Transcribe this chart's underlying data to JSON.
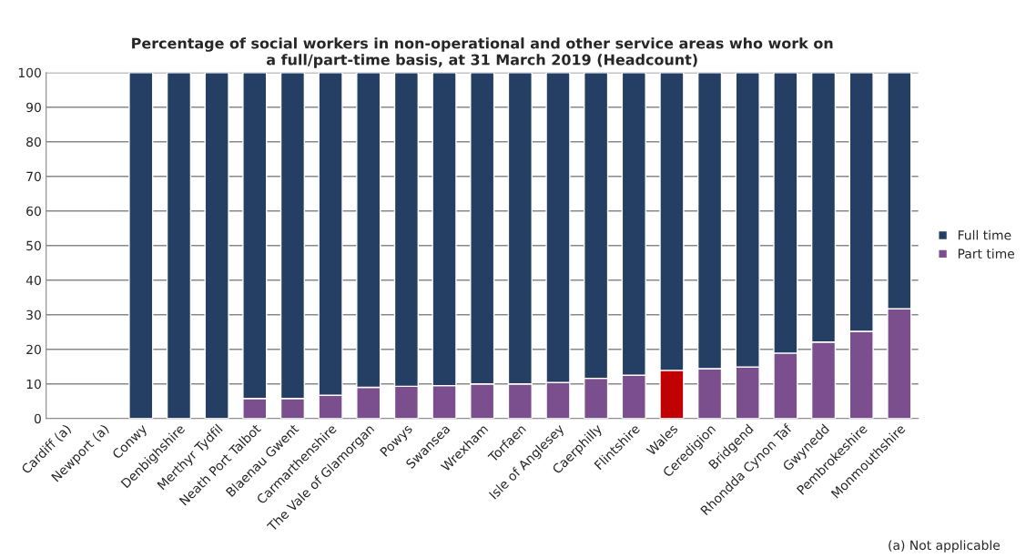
{
  "chart_data": {
    "type": "bar",
    "title": "Percentage of social workers in non-operational and other service areas who work on\na full/part-time basis, at 31 March 2019 (Headcount)",
    "categories": [
      "Cardiff (a)",
      "Newport (a)",
      "Conwy",
      "Denbighshire",
      "Merthyr Tydfil",
      "Neath Port Talbot",
      "Blaenau Gwent",
      "Carmarthenshire",
      "The Vale of Glamorgan",
      "Powys",
      "Swansea",
      "Wrexham",
      "Torfaen",
      "Isle of Anglesey",
      "Caerphilly",
      "Flintshire",
      "Wales",
      "Ceredigion",
      "Bridgend",
      "Rhondda Cynon Taf",
      "Gwynedd",
      "Pembrokeshire",
      "Monmouthshire"
    ],
    "stacked": true,
    "series": [
      {
        "name": "Part time",
        "color": "#7b4f8e",
        "colors": [
          "#7b4f8e",
          "#7b4f8e",
          "#7b4f8e",
          "#7b4f8e",
          "#7b4f8e",
          "#7b4f8e",
          "#7b4f8e",
          "#7b4f8e",
          "#7b4f8e",
          "#7b4f8e",
          "#7b4f8e",
          "#7b4f8e",
          "#7b4f8e",
          "#7b4f8e",
          "#7b4f8e",
          "#7b4f8e",
          "#c00000",
          "#7b4f8e",
          "#7b4f8e",
          "#7b4f8e",
          "#7b4f8e",
          "#7b4f8e",
          "#7b4f8e"
        ],
        "values": [
          null,
          null,
          0,
          0,
          0,
          5.8,
          5.8,
          6.7,
          9.0,
          9.3,
          9.5,
          10.0,
          10.0,
          10.4,
          11.6,
          12.5,
          13.9,
          14.4,
          14.9,
          18.9,
          22.1,
          25.2,
          31.7
        ]
      },
      {
        "name": "Full time",
        "color": "#243f63",
        "values": [
          null,
          null,
          100,
          100,
          100,
          94.2,
          94.2,
          93.3,
          91.0,
          90.7,
          90.5,
          90.0,
          90.0,
          89.6,
          88.4,
          87.5,
          86.1,
          85.6,
          85.1,
          81.1,
          77.9,
          74.8,
          68.3
        ]
      }
    ],
    "ylim": [
      0,
      100
    ],
    "yticks": [
      0,
      10,
      20,
      30,
      40,
      50,
      60,
      70,
      80,
      90,
      100
    ],
    "grid": "y",
    "legend": "right",
    "annotations": [
      "(a) Not applicable"
    ]
  }
}
